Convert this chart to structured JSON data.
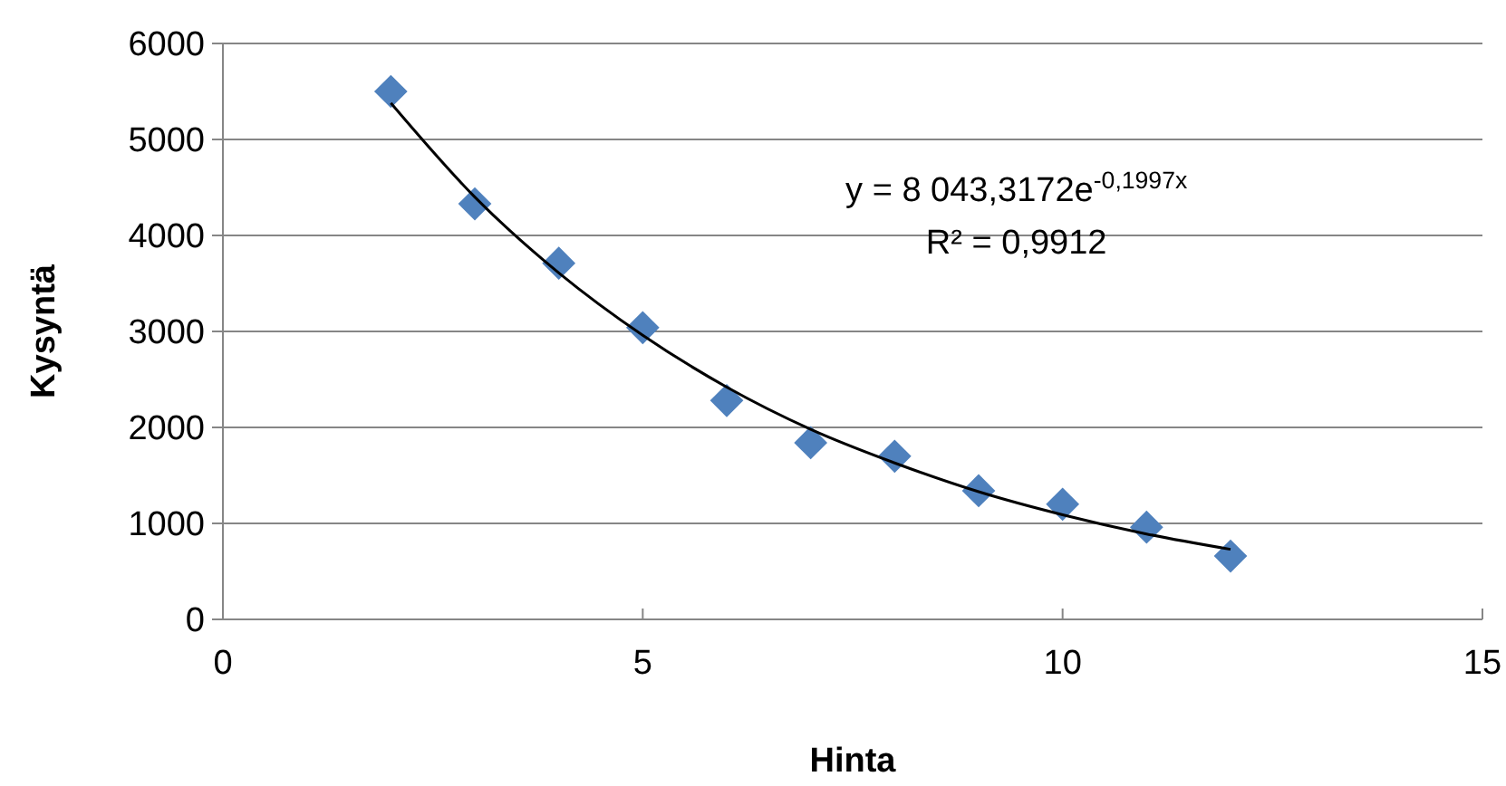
{
  "chart_data": {
    "type": "scatter",
    "xlabel": "Hinta",
    "ylabel": "Kysyntä",
    "xlim": [
      0,
      15
    ],
    "xticks": [
      0,
      5,
      10,
      15
    ],
    "ylim": [
      0,
      6000
    ],
    "yticks": [
      0,
      1000,
      2000,
      3000,
      4000,
      5000,
      6000
    ],
    "grid": "y",
    "marker": "diamond",
    "series": [
      {
        "color": "#4f81bd",
        "x": [
          2,
          3,
          4,
          5,
          6,
          7,
          8,
          9,
          10,
          11,
          12
        ],
        "values": [
          5500,
          4330,
          3710,
          3040,
          2280,
          1840,
          1700,
          1340,
          1200,
          960,
          660
        ]
      },
      {
        "type": "line",
        "color": "#000000",
        "line_style": "solid",
        "marker": "none",
        "x": [
          2,
          3,
          4,
          5,
          6,
          7,
          8,
          9,
          10,
          11,
          12
        ],
        "values": [
          5380,
          4400,
          3610,
          2960,
          2420,
          1980,
          1630,
          1330,
          1090,
          890,
          730
        ]
      }
    ],
    "annotations": [
      "y = 8 043,3172e$^{-0,1997x}$",
      "R² = 0,9912"
    ]
  }
}
